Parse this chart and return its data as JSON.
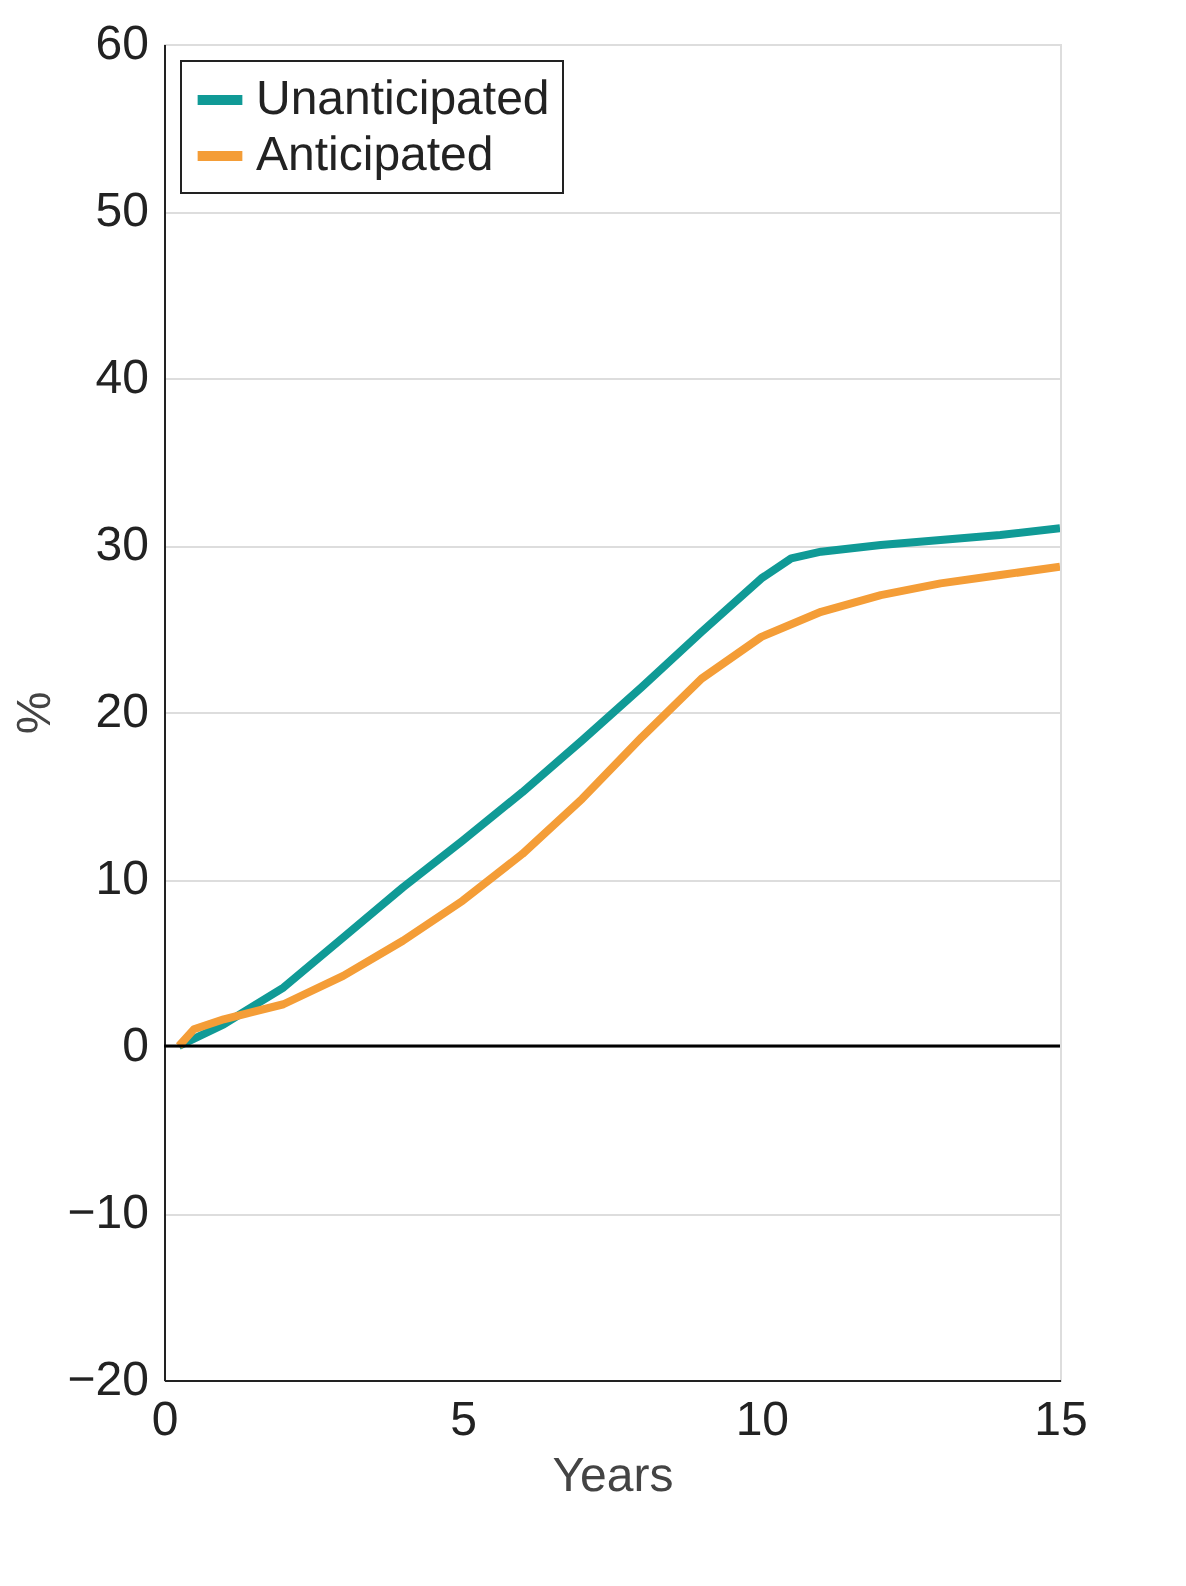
{
  "chart_data": {
    "type": "line",
    "xlabel": "Years",
    "ylabel": "%",
    "xlim": [
      0,
      15
    ],
    "xticks": [
      0,
      5,
      10,
      15
    ],
    "ylim": [
      -20,
      60
    ],
    "yticks": [
      -20,
      -10,
      0,
      10,
      20,
      30,
      40,
      50,
      60
    ],
    "grid": "y",
    "legend": "top left",
    "line_style": "solid",
    "ref_lines": [
      {
        "axis": "y",
        "value": 0,
        "color": "#000000"
      }
    ],
    "series": [
      {
        "name": "Unanticipated",
        "color": "#109a96",
        "x": [
          0.25,
          1,
          2,
          3,
          4,
          5,
          6,
          7,
          8,
          9,
          10,
          10.5,
          11,
          12,
          13,
          14,
          15
        ],
        "values": [
          0,
          1.3,
          3.5,
          6.5,
          9.5,
          12.3,
          15.2,
          18.3,
          21.5,
          24.8,
          28,
          29.2,
          29.6,
          30,
          30.3,
          30.6,
          31
        ]
      },
      {
        "name": "Anticipated",
        "color": "#f49d37",
        "x": [
          0.25,
          0.5,
          1,
          2,
          3,
          4,
          5,
          6,
          7,
          8,
          9,
          10,
          11,
          12,
          13,
          14,
          15
        ],
        "values": [
          0,
          1,
          1.6,
          2.5,
          4.2,
          6.3,
          8.7,
          11.5,
          14.8,
          18.5,
          22,
          24.5,
          26,
          27,
          27.7,
          28.2,
          28.7
        ]
      }
    ]
  }
}
